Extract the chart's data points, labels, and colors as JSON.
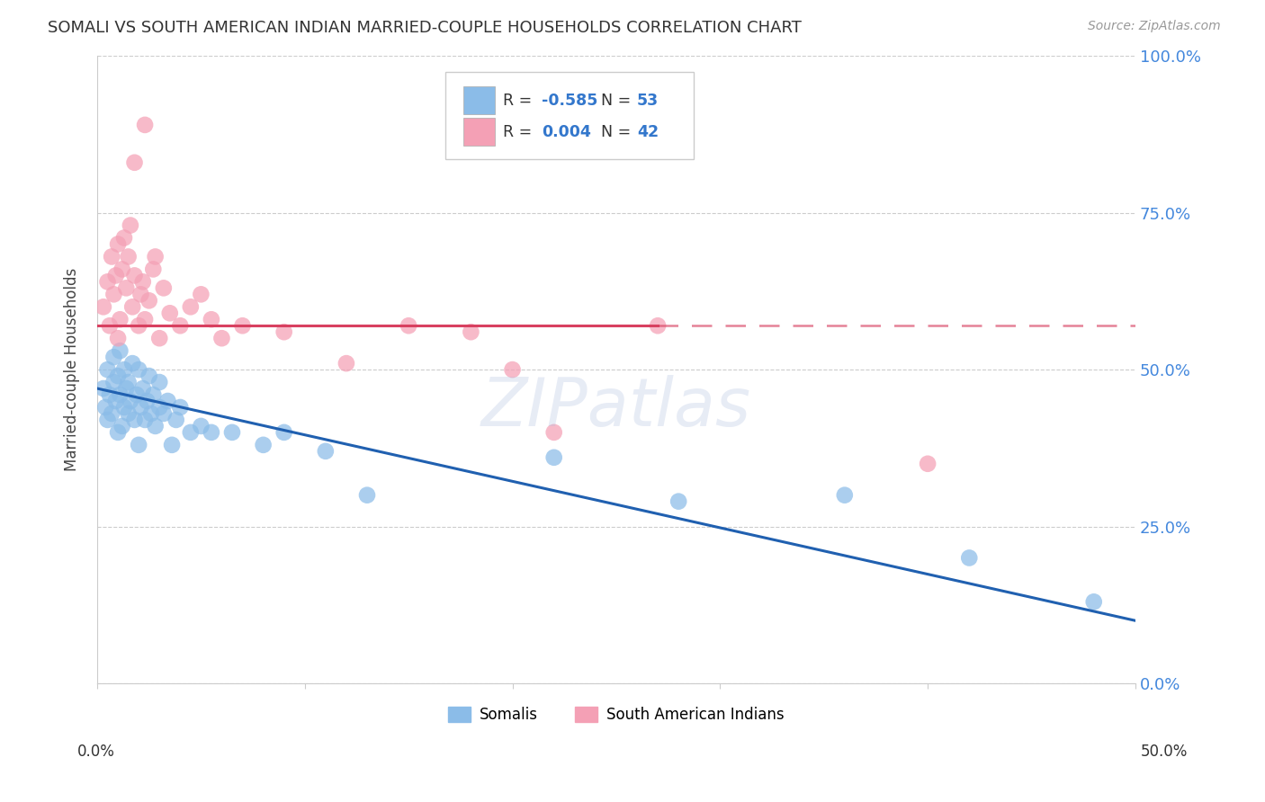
{
  "title": "SOMALI VS SOUTH AMERICAN INDIAN MARRIED-COUPLE HOUSEHOLDS CORRELATION CHART",
  "source": "Source: ZipAtlas.com",
  "ylabel": "Married-couple Households",
  "ytick_values": [
    0,
    25,
    50,
    75,
    100
  ],
  "ytick_labels": [
    "0.0%",
    "25.0%",
    "50.0%",
    "75.0%",
    "100.0%"
  ],
  "xlim": [
    0,
    50
  ],
  "ylim": [
    0,
    100
  ],
  "watermark": "ZIPatlas",
  "legend_R_blue": "-0.585",
  "legend_N_blue": "53",
  "legend_R_pink": "0.004",
  "legend_N_pink": "42",
  "blue_color": "#8BBCE8",
  "pink_color": "#F4A0B5",
  "line_blue_color": "#2060B0",
  "line_pink_color": "#D84060",
  "blue_line_y0": 47,
  "blue_line_y50": 10,
  "pink_line_y": 57,
  "pink_solid_end_x": 27,
  "somali_x": [
    0.3,
    0.4,
    0.5,
    0.5,
    0.6,
    0.7,
    0.8,
    0.8,
    0.9,
    1.0,
    1.0,
    1.1,
    1.1,
    1.2,
    1.3,
    1.3,
    1.4,
    1.5,
    1.5,
    1.6,
    1.7,
    1.8,
    1.9,
    2.0,
    2.0,
    2.1,
    2.2,
    2.3,
    2.4,
    2.5,
    2.6,
    2.7,
    2.8,
    3.0,
    3.0,
    3.2,
    3.4,
    3.6,
    3.8,
    4.0,
    4.5,
    5.0,
    5.5,
    6.5,
    8.0,
    9.0,
    11.0,
    13.0,
    22.0,
    28.0,
    36.0,
    42.0,
    48.0
  ],
  "somali_y": [
    47,
    44,
    50,
    42,
    46,
    43,
    48,
    52,
    45,
    40,
    49,
    46,
    53,
    41,
    44,
    50,
    47,
    43,
    48,
    45,
    51,
    42,
    46,
    38,
    50,
    44,
    47,
    42,
    45,
    49,
    43,
    46,
    41,
    44,
    48,
    43,
    45,
    38,
    42,
    44,
    40,
    41,
    40,
    40,
    38,
    40,
    37,
    30,
    36,
    29,
    30,
    20,
    13
  ],
  "sai_x": [
    0.3,
    0.5,
    0.6,
    0.7,
    0.8,
    0.9,
    1.0,
    1.0,
    1.1,
    1.2,
    1.3,
    1.4,
    1.5,
    1.6,
    1.7,
    1.8,
    2.0,
    2.1,
    2.2,
    2.3,
    2.5,
    2.7,
    2.8,
    3.0,
    3.2,
    3.5,
    4.0,
    4.5,
    5.0,
    5.5,
    6.0,
    7.0,
    9.0,
    12.0,
    15.0,
    18.0,
    20.0,
    22.0,
    27.0,
    40.0,
    1.8,
    2.3
  ],
  "sai_y": [
    60,
    64,
    57,
    68,
    62,
    65,
    70,
    55,
    58,
    66,
    71,
    63,
    68,
    73,
    60,
    65,
    57,
    62,
    64,
    58,
    61,
    66,
    68,
    55,
    63,
    59,
    57,
    60,
    62,
    58,
    55,
    57,
    56,
    51,
    57,
    56,
    50,
    40,
    57,
    35,
    83,
    89
  ]
}
